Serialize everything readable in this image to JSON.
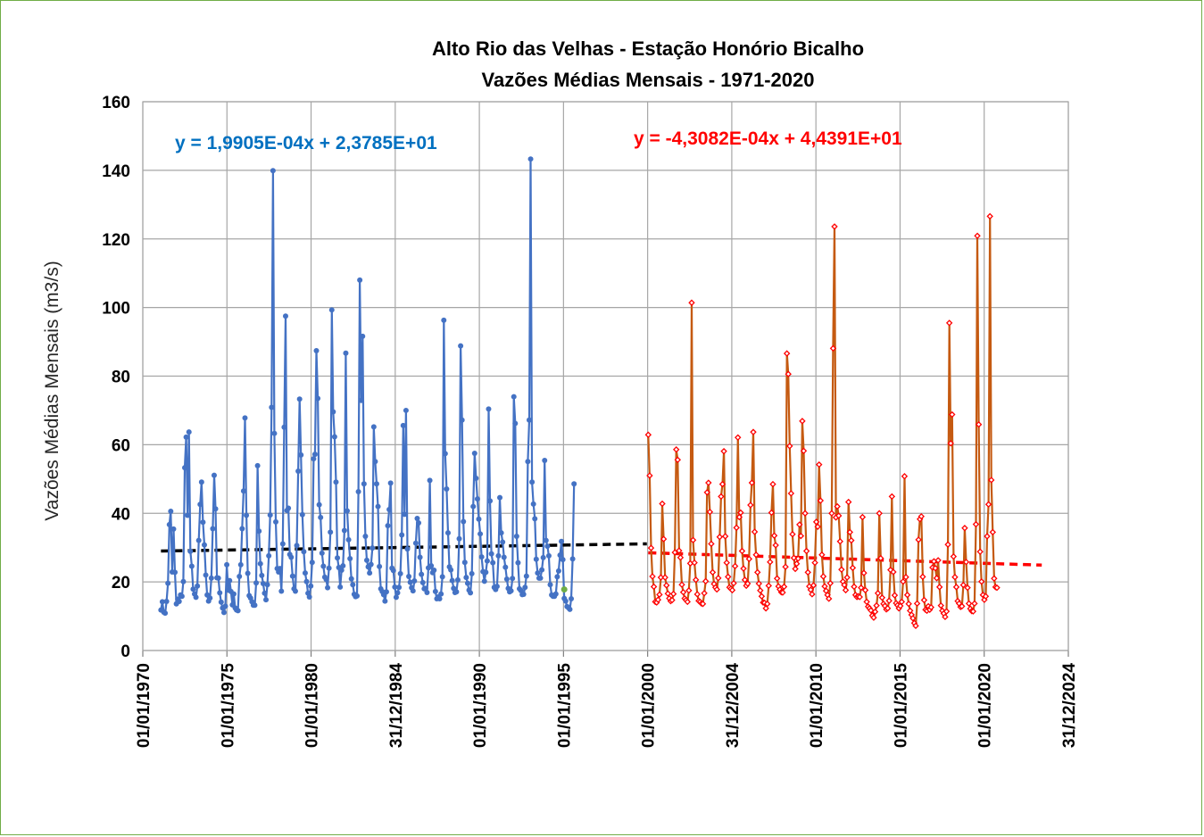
{
  "chart_data": {
    "type": "line",
    "title": "Alto Rio das Velhas - Estação Honório Bicalho",
    "subtitle": "Vazões Médias Mensais - 1971-2020",
    "ylabel": "Vazões Médias Mensais (m3/s)",
    "xlabel": "",
    "ylim": [
      0,
      160
    ],
    "yticks": [
      0,
      20,
      40,
      60,
      80,
      100,
      120,
      140,
      160
    ],
    "xticks": [
      "01/01/1970",
      "01/01/1975",
      "01/01/1980",
      "31/12/1984",
      "01/01/1990",
      "01/01/1995",
      "01/01/2000",
      "31/12/2004",
      "01/01/2010",
      "01/01/2015",
      "01/01/2020",
      "31/12/2024"
    ],
    "grid": true,
    "legend": "none",
    "series": [
      {
        "color": "#4472c4",
        "marker": "circle",
        "x_start": "1971-01",
        "step": "month",
        "values": [
          11.8,
          14.2,
          11.2,
          10.9,
          14.3,
          19.6,
          36.7,
          40.6,
          22.9,
          35.4,
          22.8,
          13.6,
          15.0,
          14.3,
          16.2,
          15.8,
          20.1,
          53.3,
          62.2,
          39.4,
          63.7,
          28.9,
          24.6,
          17.9,
          16.5,
          15.5,
          18.8,
          32.1,
          42.6,
          49.1,
          37.4,
          30.8,
          22.0,
          16.2,
          14.4,
          15.3,
          21.1,
          35.5,
          51.1,
          41.3,
          21.2,
          21.1,
          16.8,
          14.1,
          12.4,
          11.1,
          12.9,
          25.0,
          17.6,
          20.4,
          17.2,
          13.3,
          16.5,
          12.4,
          11.8,
          11.6,
          21.6,
          25.0,
          35.5,
          46.5,
          67.8,
          39.4,
          22.5,
          16.0,
          15.3,
          14.2,
          13.2,
          13.2,
          19.7,
          53.9,
          34.8,
          25.3,
          21.9,
          19.5,
          16.7,
          14.8,
          19.2,
          27.6,
          39.5,
          70.9,
          139.9,
          63.3,
          37.5,
          23.9,
          22.9,
          23.9,
          17.3,
          31.1,
          65.1,
          97.5,
          40.8,
          41.5,
          28.0,
          27.2,
          21.7,
          18.0,
          17.3,
          30.6,
          52.3,
          73.3,
          57.0,
          39.6,
          28.8,
          22.6,
          20.1,
          16.7,
          15.6,
          18.8,
          25.7,
          55.9,
          57.2,
          87.4,
          73.5,
          42.5,
          38.8,
          28.4,
          24.6,
          21.4,
          20.7,
          18.3,
          24.0,
          34.5,
          99.3,
          69.6,
          62.3,
          49.1,
          27.0,
          24.2,
          18.5,
          23.4,
          24.7,
          35.0,
          86.7,
          40.7,
          32.3,
          26.8,
          20.9,
          19.2,
          16.4,
          15.7,
          15.9,
          46.3,
          108.0,
          72.9,
          91.6,
          48.6,
          33.3,
          26.3,
          24.4,
          22.6,
          25.1,
          29.9,
          65.2,
          55.1,
          48.6,
          42.0,
          24.5,
          18.0,
          17.2,
          16.3,
          14.4,
          17.1,
          36.4,
          41.1,
          48.8,
          24.0,
          23.3,
          18.5,
          15.5,
          16.8,
          18.4,
          22.4,
          33.7,
          65.6,
          39.7,
          70.0,
          29.6,
          21.6,
          19.9,
          18.3,
          17.4,
          20.3,
          31.3,
          38.5,
          37.2,
          27.2,
          22.2,
          19.8,
          18.0,
          18.1,
          16.9,
          24.1,
          49.6,
          24.7,
          22.7,
          23.4,
          17.2,
          15.1,
          15.6,
          15.1,
          16.5,
          21.5,
          96.3,
          57.4,
          47.1,
          34.3,
          24.4,
          23.5,
          20.4,
          18.1,
          16.9,
          17.1,
          20.6,
          32.6,
          88.8,
          67.2,
          37.6,
          25.7,
          21.3,
          19.6,
          17.6,
          16.8,
          22.4,
          42.0,
          57.5,
          50.2,
          44.2,
          38.3,
          34.0,
          27.3,
          23.0,
          20.2,
          22.8,
          26.1,
          70.4,
          43.6,
          28.2,
          25.6,
          18.4,
          17.8,
          18.7,
          27.6,
          44.6,
          34.3,
          31.6,
          27.2,
          24.3,
          20.8,
          18.1,
          17.1,
          17.4,
          21.0,
          74.0,
          66.2,
          33.3,
          25.6,
          18.0,
          17.5,
          16.3,
          16.4,
          18.4,
          21.7,
          55.1,
          67.2,
          143.3,
          49.1,
          42.7,
          38.4,
          26.6,
          22.6,
          21.1,
          21.1,
          23.5,
          27.1,
          55.4,
          32.1,
          30.4,
          27.6,
          19.2,
          16.2,
          15.8,
          15.8,
          16.5,
          21.5,
          23.2,
          27.8,
          31.8,
          26.5,
          15.2,
          14.4,
          12.8,
          12.5,
          12.0,
          15.1,
          26.7,
          48.6
        ]
      },
      {
        "color": "#c55a11",
        "marker": "diamond",
        "marker_color": "#ff0000",
        "x_start": "2000-01",
        "step": "month",
        "values": [
          62.9,
          51.0,
          29.9,
          21.6,
          18.6,
          14.2,
          14.0,
          14.8,
          16.3,
          21.3,
          42.8,
          32.5,
          21.3,
          19.0,
          16.6,
          15.2,
          14.4,
          14.7,
          16.5,
          28.6,
          58.6,
          55.6,
          29.1,
          27.1,
          19.2,
          17.0,
          15.2,
          14.7,
          14.2,
          17.5,
          25.4,
          101.4,
          32.2,
          25.6,
          20.6,
          16.4,
          14.5,
          14.2,
          13.7,
          13.6,
          16.7,
          20.2,
          46.1,
          48.9,
          40.4,
          31.1,
          22.8,
          19.4,
          18.4,
          17.8,
          21.1,
          33.1,
          44.9,
          48.5,
          58.1,
          33.3,
          25.6,
          21.5,
          18.4,
          18.0,
          17.6,
          19.6,
          24.6,
          35.8,
          62.1,
          38.9,
          40.2,
          29.0,
          23.9,
          20.6,
          18.9,
          19.5,
          26.7,
          42.4,
          48.9,
          63.7,
          34.6,
          27.9,
          22.8,
          19.5,
          17.5,
          15.8,
          14.0,
          13.9,
          12.3,
          13.6,
          18.9,
          25.8,
          40.2,
          48.5,
          33.5,
          30.7,
          21.0,
          18.7,
          17.8,
          17.0,
          16.9,
          18.6,
          24.4,
          86.6,
          80.6,
          59.6,
          45.8,
          33.9,
          27.0,
          23.8,
          25.3,
          26.8,
          36.7,
          33.4,
          66.9,
          58.2,
          40.0,
          29.0,
          22.8,
          18.7,
          17.7,
          16.4,
          19.0,
          25.6,
          37.5,
          36.1,
          54.2,
          43.7,
          27.9,
          21.6,
          18.7,
          17.4,
          16.2,
          15.1,
          19.6,
          40.0,
          88.1,
          123.6,
          38.8,
          42.0,
          39.3,
          31.8,
          23.6,
          20.1,
          19.1,
          17.6,
          21.3,
          43.3,
          34.5,
          32.1,
          24.1,
          18.6,
          16.2,
          15.6,
          15.8,
          15.6,
          18.3,
          38.9,
          22.6,
          17.6,
          14.2,
          12.8,
          12.3,
          11.7,
          10.2,
          9.6,
          11.3,
          13.1,
          16.7,
          40.0,
          26.9,
          15.4,
          13.6,
          13.0,
          12.0,
          12.3,
          14.5,
          23.5,
          44.9,
          22.9,
          16.1,
          13.8,
          13.2,
          12.3,
          13.0,
          14.2,
          20.1,
          50.8,
          21.4,
          16.2,
          13.6,
          11.6,
          10.4,
          9.4,
          8.0,
          7.2,
          13.7,
          32.3,
          38.3,
          39.1,
          21.5,
          14.7,
          11.9,
          11.6,
          12.9,
          11.9,
          12.6,
          24.2,
          26.0,
          24.0,
          21.1,
          26.3,
          18.5,
          13.1,
          11.6,
          10.8,
          9.8,
          11.4,
          30.9,
          95.5,
          60.4,
          68.8,
          27.4,
          21.4,
          18.5,
          14.4,
          13.7,
          12.7,
          12.9,
          19.1,
          35.7,
          25.8,
          18.3,
          13.7,
          12.2,
          11.5,
          11.4,
          13.7,
          36.8,
          120.9,
          65.9,
          28.8,
          20.1,
          16.2,
          14.8,
          15.8,
          33.3,
          42.6,
          126.6,
          49.7,
          34.5,
          21.0,
          18.5,
          18.3
        ]
      }
    ],
    "trendlines": [
      {
        "color": "#000000",
        "style": "dashed",
        "equation": "y = 1,9905E-04x + 2,3785E+01",
        "label_color": "#0070c0",
        "x_range": [
          "1971-01",
          "1999-12"
        ],
        "y_range": [
          29.0,
          31.1
        ]
      },
      {
        "color": "#ff0000",
        "style": "dashed",
        "equation": "y = -4,3082E-04x + 4,4391E+01",
        "label_color": "#ff0000",
        "x_range": [
          "2000-01",
          "2023-06"
        ],
        "y_range": [
          28.5,
          24.9
        ]
      }
    ],
    "extra_points": [
      {
        "x": "1995-01",
        "y": 17.8,
        "color": "#70ad47"
      }
    ]
  }
}
